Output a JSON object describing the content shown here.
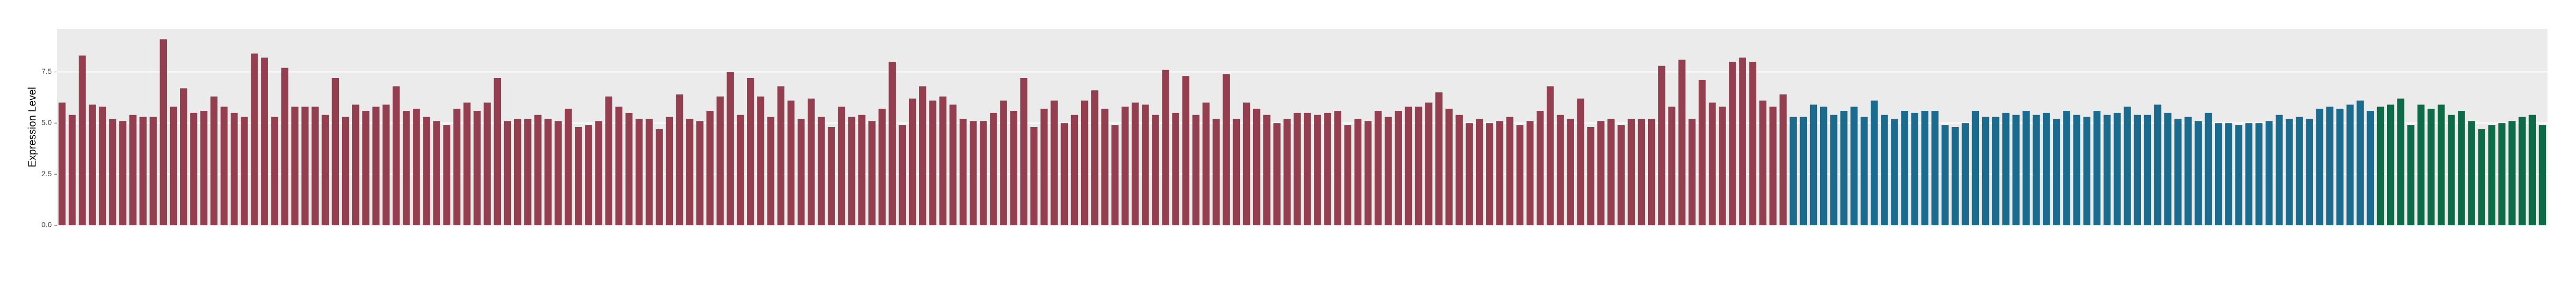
{
  "chart_data": {
    "type": "bar",
    "y_label": "Expression Level",
    "ylim": [
      0,
      9.6
    ],
    "yticks": [
      {
        "value": 0,
        "label": "0.0"
      },
      2.5,
      {
        "value": 5,
        "label": "5.0"
      },
      7.5
    ],
    "grid": true,
    "series": [
      {
        "color": "#933f4f",
        "values": [
          6.0,
          5.4,
          8.3,
          5.9,
          5.8,
          5.2,
          5.1,
          5.4,
          5.3,
          5.3,
          9.1,
          5.8,
          6.7,
          5.5,
          5.6,
          6.3,
          5.8,
          5.5,
          5.3,
          8.4,
          8.2,
          5.3,
          7.7,
          5.8,
          5.8,
          5.8,
          5.4,
          7.2,
          5.3,
          5.9,
          5.6,
          5.8,
          5.9,
          6.8,
          5.6,
          5.7,
          5.3,
          5.1,
          4.9,
          5.7,
          6.0,
          5.6,
          6.0,
          7.2,
          5.1,
          5.2,
          5.2,
          5.4,
          5.2,
          5.1,
          5.7,
          4.8,
          4.9,
          5.1,
          6.3,
          5.8,
          5.5,
          5.2,
          5.2,
          4.7,
          5.3,
          6.4,
          5.2,
          5.1,
          5.6,
          6.3,
          7.5,
          5.4,
          7.2,
          6.3,
          5.3,
          6.8,
          6.1,
          5.2,
          6.2,
          5.3,
          4.8,
          5.8,
          5.3,
          5.4,
          5.1,
          5.7,
          8.0,
          4.9,
          6.2,
          6.8,
          6.1,
          6.3,
          5.9,
          5.2,
          5.1,
          5.1,
          5.5,
          6.1,
          5.6,
          7.2,
          4.8,
          5.7,
          6.1,
          5.0,
          5.4,
          6.1,
          6.6,
          5.7,
          4.9,
          5.8,
          6.0,
          5.9,
          5.4,
          7.6,
          5.5,
          7.3,
          5.4,
          6.0,
          5.2,
          7.4,
          5.2,
          6.0,
          5.7,
          5.4,
          5.0,
          5.2,
          5.5,
          5.5,
          5.4,
          5.5,
          5.6,
          4.9,
          5.2,
          5.1,
          5.6,
          5.3,
          5.6,
          5.8,
          5.8,
          6.0,
          6.5,
          5.7,
          5.4,
          5.0,
          5.2,
          5.0,
          5.1,
          5.3,
          4.9,
          5.1,
          5.6,
          6.8,
          5.4,
          5.2,
          6.2,
          4.8,
          5.1,
          5.2,
          4.9,
          5.2,
          5.2,
          5.2,
          7.8,
          5.8,
          8.1,
          5.2,
          7.1,
          6.0,
          5.8,
          8.0,
          8.2,
          8.0,
          6.1,
          5.8,
          6.4
        ]
      },
      {
        "color": "#1b6b8e",
        "values": [
          5.3,
          5.3,
          5.9,
          5.8,
          5.4,
          5.6,
          5.8,
          5.3,
          6.1,
          5.4,
          5.2,
          5.6,
          5.5,
          5.6,
          5.6,
          4.9,
          4.8,
          5.0,
          5.6,
          5.3,
          5.3,
          5.5,
          5.4,
          5.6,
          5.4,
          5.5,
          5.2,
          5.6,
          5.4,
          5.3,
          5.6,
          5.4,
          5.5,
          5.8,
          5.4,
          5.4,
          5.9,
          5.5,
          5.2,
          5.3,
          5.1,
          5.5,
          5.0,
          5.0,
          4.9,
          5.0,
          5.0,
          5.1,
          5.4,
          5.2,
          5.3,
          5.2,
          5.7,
          5.8,
          5.7,
          5.9,
          6.1,
          5.6
        ]
      },
      {
        "color": "#0e6b47",
        "values": [
          5.8,
          5.9,
          6.2,
          4.9,
          5.9,
          5.7,
          5.9,
          5.4,
          5.6,
          5.1,
          4.7,
          4.9,
          5.0,
          5.1,
          5.3,
          5.4,
          4.9
        ]
      }
    ]
  }
}
